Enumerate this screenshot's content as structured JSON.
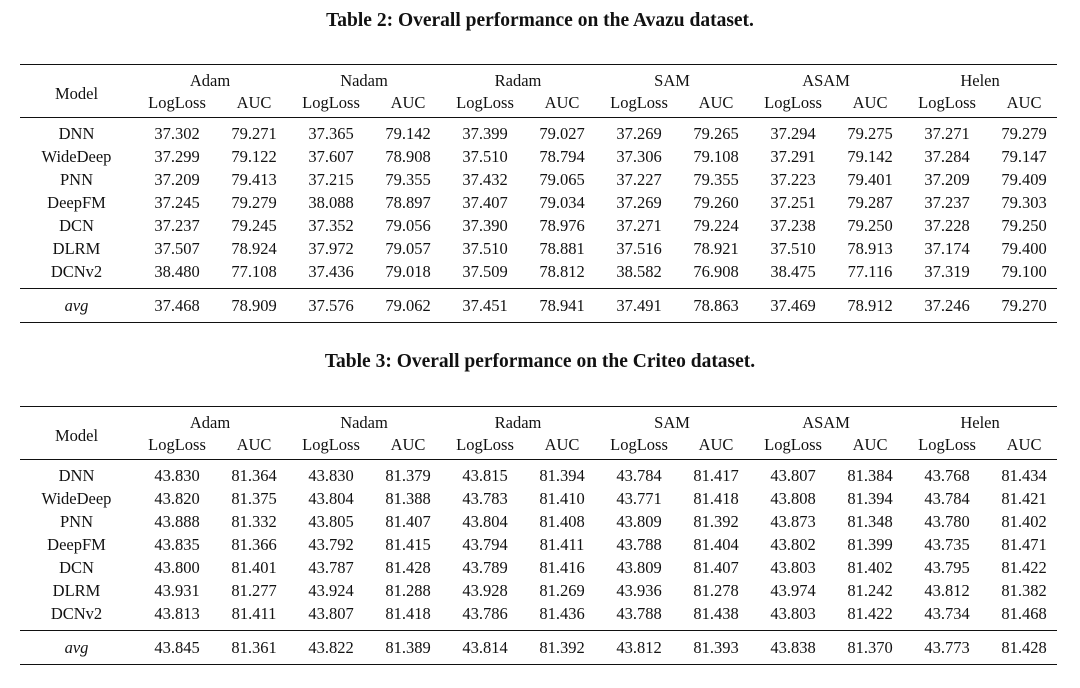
{
  "tables": [
    {
      "caption": "Table 2: Overall performance on the Avazu dataset.",
      "model_header": "Model",
      "optimizers": [
        "Adam",
        "Nadam",
        "Radam",
        "SAM",
        "ASAM",
        "Helen"
      ],
      "metric_headers": [
        "LogLoss",
        "AUC"
      ],
      "rows": [
        {
          "model": "DNN",
          "values": [
            "37.302",
            "79.271",
            "37.365",
            "79.142",
            "37.399",
            "79.027",
            "37.269",
            "79.265",
            "37.294",
            "79.275",
            "37.271",
            "79.279"
          ],
          "bold": [
            6,
            11
          ]
        },
        {
          "model": "WideDeep",
          "values": [
            "37.299",
            "79.122",
            "37.607",
            "78.908",
            "37.510",
            "78.794",
            "37.306",
            "79.108",
            "37.291",
            "79.142",
            "37.284",
            "79.147"
          ],
          "bold": [
            10,
            11
          ]
        },
        {
          "model": "PNN",
          "values": [
            "37.209",
            "79.413",
            "37.215",
            "79.355",
            "37.432",
            "79.065",
            "37.227",
            "79.355",
            "37.223",
            "79.401",
            "37.209",
            "79.409"
          ],
          "bold": [
            0,
            1,
            10
          ]
        },
        {
          "model": "DeepFM",
          "values": [
            "37.245",
            "79.279",
            "38.088",
            "78.897",
            "37.407",
            "79.034",
            "37.269",
            "79.260",
            "37.251",
            "79.287",
            "37.237",
            "79.303"
          ],
          "bold": [
            10,
            11
          ]
        },
        {
          "model": "DCN",
          "values": [
            "37.237",
            "79.245",
            "37.352",
            "79.056",
            "37.390",
            "78.976",
            "37.271",
            "79.224",
            "37.238",
            "79.250",
            "37.228",
            "79.250"
          ],
          "bold": [
            9,
            10,
            11
          ]
        },
        {
          "model": "DLRM",
          "values": [
            "37.507",
            "78.924",
            "37.972",
            "79.057",
            "37.510",
            "78.881",
            "37.516",
            "78.921",
            "37.510",
            "78.913",
            "37.174",
            "79.400"
          ],
          "bold": [
            10,
            11
          ]
        },
        {
          "model": "DCNv2",
          "values": [
            "38.480",
            "77.108",
            "37.436",
            "79.018",
            "37.509",
            "78.812",
            "38.582",
            "76.908",
            "38.475",
            "77.116",
            "37.319",
            "79.100"
          ],
          "bold": [
            10,
            11
          ]
        }
      ],
      "avg": {
        "label": "avg",
        "values": [
          "37.468",
          "78.909",
          "37.576",
          "79.062",
          "37.451",
          "78.941",
          "37.491",
          "78.863",
          "37.469",
          "78.912",
          "37.246",
          "79.270"
        ],
        "bold": [
          10,
          11
        ]
      }
    },
    {
      "caption": "Table 3: Overall performance on the Criteo dataset.",
      "model_header": "Model",
      "optimizers": [
        "Adam",
        "Nadam",
        "Radam",
        "SAM",
        "ASAM",
        "Helen"
      ],
      "metric_headers": [
        "LogLoss",
        "AUC"
      ],
      "rows": [
        {
          "model": "DNN",
          "values": [
            "43.830",
            "81.364",
            "43.830",
            "81.379",
            "43.815",
            "81.394",
            "43.784",
            "81.417",
            "43.807",
            "81.384",
            "43.768",
            "81.434"
          ],
          "bold": [
            10,
            11
          ]
        },
        {
          "model": "WideDeep",
          "values": [
            "43.820",
            "81.375",
            "43.804",
            "81.388",
            "43.783",
            "81.410",
            "43.771",
            "81.418",
            "43.808",
            "81.394",
            "43.784",
            "81.421"
          ],
          "bold": [
            10,
            11
          ]
        },
        {
          "model": "PNN",
          "values": [
            "43.888",
            "81.332",
            "43.805",
            "81.407",
            "43.804",
            "81.408",
            "43.809",
            "81.392",
            "43.873",
            "81.348",
            "43.780",
            "81.402"
          ],
          "bold": [
            5,
            10
          ]
        },
        {
          "model": "DeepFM",
          "values": [
            "43.835",
            "81.366",
            "43.792",
            "81.415",
            "43.794",
            "81.411",
            "43.788",
            "81.404",
            "43.802",
            "81.399",
            "43.735",
            "81.471"
          ],
          "bold": [
            10,
            11
          ]
        },
        {
          "model": "DCN",
          "values": [
            "43.800",
            "81.401",
            "43.787",
            "81.428",
            "43.789",
            "81.416",
            "43.809",
            "81.407",
            "43.803",
            "81.402",
            "43.795",
            "81.422"
          ],
          "bold": [
            10,
            11
          ]
        },
        {
          "model": "DLRM",
          "values": [
            "43.931",
            "81.277",
            "43.924",
            "81.288",
            "43.928",
            "81.269",
            "43.936",
            "81.278",
            "43.974",
            "81.242",
            "43.812",
            "81.382"
          ],
          "bold": [
            10,
            11
          ]
        },
        {
          "model": "DCNv2",
          "values": [
            "43.813",
            "81.411",
            "43.807",
            "81.418",
            "43.786",
            "81.436",
            "43.788",
            "81.438",
            "43.803",
            "81.422",
            "43.734",
            "81.468"
          ],
          "bold": [
            10,
            11
          ]
        }
      ],
      "avg": {
        "label": "avg",
        "values": [
          "43.845",
          "81.361",
          "43.822",
          "81.389",
          "43.814",
          "81.392",
          "43.812",
          "81.393",
          "43.838",
          "81.370",
          "43.773",
          "81.428"
        ],
        "bold": [
          10,
          11
        ]
      }
    }
  ]
}
